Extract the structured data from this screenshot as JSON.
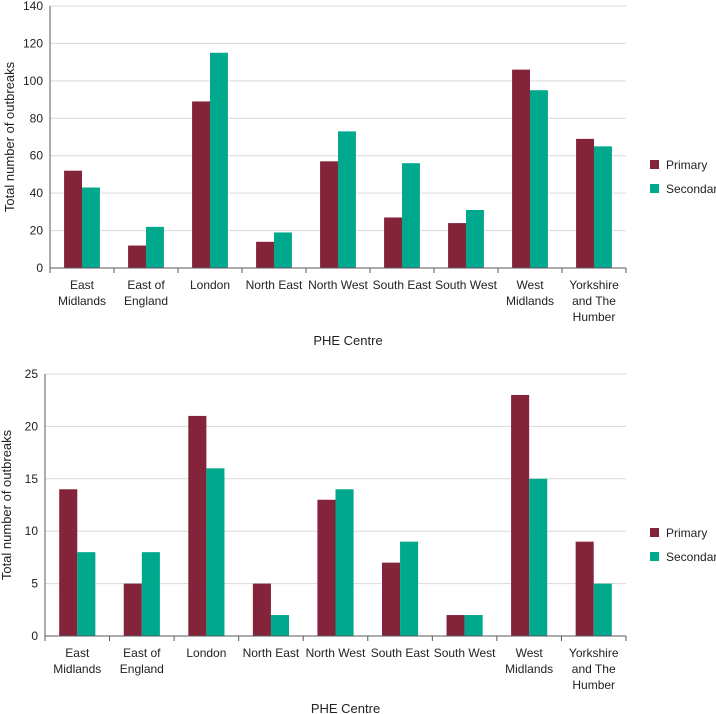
{
  "chart_data": [
    {
      "type": "bar",
      "categories": [
        "East Midlands",
        "East of England",
        "London",
        "North East",
        "North West",
        "South East",
        "South West",
        "West Midlands",
        "Yorkshire and The Humber"
      ],
      "category_lines": [
        [
          "East",
          "Midlands"
        ],
        [
          "East of",
          "England"
        ],
        [
          "London"
        ],
        [
          "North East"
        ],
        [
          "North West"
        ],
        [
          "South East"
        ],
        [
          "South West"
        ],
        [
          "West",
          "Midlands"
        ],
        [
          "Yorkshire",
          "and The",
          "Humber"
        ]
      ],
      "series": [
        {
          "name": "Primary",
          "values": [
            52,
            12,
            89,
            14,
            57,
            27,
            24,
            106,
            69
          ]
        },
        {
          "name": "Secondary",
          "values": [
            43,
            22,
            115,
            19,
            73,
            56,
            31,
            95,
            65
          ]
        }
      ],
      "yticks": [
        "0",
        "20",
        "40",
        "60",
        "80",
        "100",
        "120",
        "140"
      ],
      "ylim": [
        0,
        140
      ],
      "xlabel": "PHE Centre",
      "ylabel": "Total number of outbreaks",
      "grid": true,
      "legend": "right"
    },
    {
      "type": "bar",
      "categories": [
        "East Midlands",
        "East of England",
        "London",
        "North East",
        "North West",
        "South East",
        "South West",
        "West Midlands",
        "Yorkshire and The Humber"
      ],
      "category_lines": [
        [
          "East",
          "Midlands"
        ],
        [
          "East of",
          "England"
        ],
        [
          "London"
        ],
        [
          "North East"
        ],
        [
          "North West"
        ],
        [
          "South East"
        ],
        [
          "South West"
        ],
        [
          "West",
          "Midlands"
        ],
        [
          "Yorkshire",
          "and The",
          "Humber"
        ]
      ],
      "series": [
        {
          "name": "Primary",
          "values": [
            14,
            5,
            21,
            5,
            13,
            7,
            2,
            23,
            9
          ]
        },
        {
          "name": "Secondary",
          "values": [
            8,
            8,
            16,
            2,
            14,
            9,
            2,
            15,
            5
          ]
        }
      ],
      "yticks": [
        "0",
        "5",
        "10",
        "15",
        "20",
        "25"
      ],
      "ylim": [
        0,
        25
      ],
      "xlabel": "PHE Centre",
      "ylabel": "Total number of outbreaks",
      "grid": true,
      "legend": "right"
    }
  ],
  "colors": {
    "primary": "#84243a",
    "secondary": "#00a98e",
    "grid": "#d9d9d9",
    "axis": "#595959"
  }
}
